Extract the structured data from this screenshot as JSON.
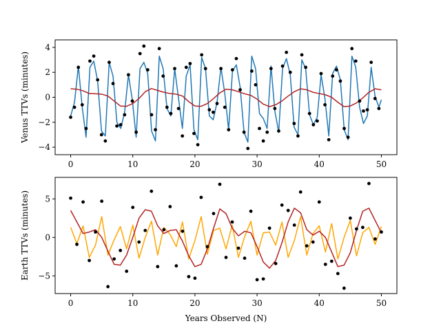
{
  "chart_data": [
    {
      "type": "line",
      "panel": "top",
      "title": "",
      "xlabel": "",
      "ylabel": "Venus TTVs (minutes)",
      "xlim": [
        -2.5,
        52.5
      ],
      "ylim": [
        -4.6,
        4.6
      ],
      "xticks": [
        0,
        10,
        20,
        30,
        40,
        50
      ],
      "yticks": [
        -4,
        -2,
        0,
        2,
        4
      ],
      "grid": false,
      "series": [
        {
          "kind": "scatter",
          "color": "#000000",
          "x": [
            0.0,
            0.62,
            1.24,
            1.86,
            2.48,
            3.1,
            3.72,
            4.34,
            4.96,
            5.58,
            6.2,
            6.82,
            7.44,
            8.06,
            8.68,
            9.3,
            9.92,
            10.54,
            11.16,
            11.78,
            12.4,
            13.02,
            13.64,
            14.26,
            14.88,
            15.5,
            16.12,
            16.74,
            17.36,
            17.98,
            18.6,
            19.22,
            19.84,
            20.46,
            21.08,
            21.7,
            22.32,
            22.94,
            23.56,
            24.18,
            24.8,
            25.42,
            26.04,
            26.66,
            27.28,
            27.9,
            28.52,
            29.14,
            29.76,
            30.38,
            31.0,
            31.62,
            32.24,
            32.86,
            33.48,
            34.1,
            34.72,
            35.34,
            35.96,
            36.58,
            37.2,
            37.82,
            38.44,
            39.06,
            39.68,
            40.3,
            40.92,
            41.54,
            42.16,
            42.78,
            43.4,
            44.02,
            44.64,
            45.26,
            45.88,
            46.5,
            47.12,
            47.74,
            48.36,
            48.98,
            49.6
          ],
          "y": [
            -1.6,
            -0.8,
            2.4,
            -0.6,
            -2.5,
            2.9,
            3.3,
            1.4,
            -3.0,
            -3.5,
            2.8,
            1.1,
            -2.3,
            -2.2,
            -1.4,
            1.8,
            -0.3,
            -2.8,
            3.5,
            4.1,
            2.2,
            -1.4,
            -2.6,
            3.9,
            1.7,
            -0.8,
            -1.3,
            2.3,
            -0.9,
            -3.1,
            2.4,
            2.7,
            -2.9,
            -3.8,
            3.4,
            2.3,
            -1.0,
            -1.2,
            -0.5,
            2.3,
            -0.8,
            -2.6,
            2.2,
            3.1,
            0.6,
            -2.8,
            -4.1,
            2.1,
            1.0,
            -2.5,
            -3.5,
            -2.8,
            2.3,
            -0.9,
            -2.7,
            2.5,
            3.6,
            2.0,
            -2.1,
            -3.1,
            3.4,
            2.4,
            -1.3,
            -2.2,
            -1.9,
            1.9,
            -0.6,
            -3.4,
            1.7,
            2.2,
            1.3,
            -2.5,
            -3.2,
            3.9,
            2.9,
            -0.3,
            -1.1,
            -1.0,
            2.8,
            -0.1,
            -0.9
          ]
        },
        {
          "kind": "line",
          "color": "#1f77b4",
          "x": [
            0.0,
            0.62,
            1.24,
            1.86,
            2.48,
            3.1,
            3.72,
            4.34,
            4.96,
            5.58,
            6.2,
            6.82,
            7.44,
            8.06,
            8.68,
            9.3,
            9.92,
            10.54,
            11.16,
            11.78,
            12.4,
            13.02,
            13.64,
            14.26,
            14.88,
            15.5,
            16.12,
            16.74,
            17.36,
            17.98,
            18.6,
            19.22,
            19.84,
            20.46,
            21.08,
            21.7,
            22.32,
            22.94,
            23.56,
            24.18,
            24.8,
            25.42,
            26.04,
            26.66,
            27.28,
            27.9,
            28.52,
            29.14,
            29.76,
            30.38,
            31.0,
            31.62,
            32.24,
            32.86,
            33.48,
            34.1,
            34.72,
            35.34,
            35.96,
            36.58,
            37.2,
            37.82,
            38.44,
            39.06,
            39.68,
            40.3,
            40.92,
            41.54,
            42.16,
            42.78,
            43.4,
            44.02,
            44.64,
            45.26,
            45.88,
            46.5,
            47.12,
            47.74,
            48.36,
            48.98,
            49.6,
            50.0
          ],
          "y": [
            -1.5,
            -0.4,
            2.5,
            -0.8,
            -3.2,
            2.4,
            2.9,
            1.3,
            -2.7,
            -3.1,
            2.8,
            1.7,
            -2.0,
            -2.5,
            -1.2,
            1.8,
            -0.2,
            -3.2,
            2.3,
            2.8,
            1.9,
            -2.7,
            -3.5,
            3.3,
            2.3,
            -0.9,
            -1.5,
            2.3,
            -0.1,
            -2.5,
            1.7,
            2.6,
            -2.6,
            -3.4,
            3.2,
            2.3,
            -1.5,
            -1.8,
            -0.4,
            2.4,
            0.3,
            -2.6,
            2.1,
            2.6,
            0.8,
            -2.8,
            -3.6,
            3.3,
            2.3,
            -1.3,
            -1.7,
            -2.5,
            2.5,
            -1.1,
            -2.8,
            2.3,
            3.1,
            1.8,
            -2.4,
            -3.0,
            3.0,
            2.3,
            -1.4,
            -2.2,
            -1.6,
            1.8,
            -0.1,
            -3.1,
            1.9,
            2.5,
            1.4,
            -2.6,
            -3.4,
            3.3,
            2.4,
            -0.8,
            -2.1,
            -1.5,
            2.4,
            0.1,
            -0.8,
            -0.2
          ]
        },
        {
          "kind": "line",
          "color": "#b22222",
          "x": [
            0,
            1,
            2,
            3,
            4,
            5,
            6,
            7,
            8,
            9,
            10,
            11,
            12,
            13,
            14,
            15,
            16,
            17,
            18,
            19,
            20,
            21,
            22,
            23,
            24,
            25,
            26,
            27,
            28,
            29,
            30,
            31,
            32,
            33,
            34,
            35,
            36,
            37,
            38,
            39,
            40,
            41,
            42,
            43,
            44,
            45,
            46,
            47,
            48,
            49,
            50
          ],
          "y": [
            0.68,
            0.65,
            0.52,
            0.3,
            0.28,
            0.25,
            0.1,
            -0.3,
            -0.7,
            -0.72,
            -0.5,
            -0.1,
            0.45,
            0.7,
            0.55,
            0.4,
            0.3,
            0.25,
            0.1,
            -0.35,
            -0.7,
            -0.72,
            -0.5,
            -0.1,
            0.35,
            0.65,
            0.6,
            0.45,
            0.28,
            0.15,
            -0.15,
            -0.55,
            -0.75,
            -0.6,
            -0.3,
            0.1,
            0.45,
            0.68,
            0.6,
            0.4,
            0.3,
            0.2,
            0.0,
            -0.4,
            -0.75,
            -0.7,
            -0.45,
            -0.05,
            0.4,
            0.68,
            0.6
          ]
        }
      ]
    },
    {
      "type": "line",
      "panel": "bottom",
      "title": "",
      "xlabel": "Years Observed (N)",
      "ylabel": "Earth TTVs (minutes)",
      "xlim": [
        -2.5,
        52.5
      ],
      "ylim": [
        -7.3,
        7.8
      ],
      "xticks": [
        0,
        10,
        20,
        30,
        40,
        50
      ],
      "yticks": [
        -5,
        0,
        5
      ],
      "grid": false,
      "series": [
        {
          "kind": "scatter",
          "color": "#000000",
          "x": [
            0,
            1,
            2,
            3,
            4,
            5,
            6,
            7,
            8,
            9,
            10,
            11,
            12,
            13,
            14,
            15,
            16,
            17,
            18,
            19,
            20,
            21,
            22,
            23,
            24,
            25,
            26,
            27,
            28,
            29,
            30,
            31,
            32,
            33,
            34,
            35,
            36,
            37,
            38,
            39,
            40,
            41,
            42,
            43,
            44,
            45,
            46,
            47,
            48,
            49,
            50
          ],
          "y": [
            5.1,
            -0.9,
            4.6,
            -3.0,
            0.7,
            4.7,
            -6.4,
            -2.8,
            -1.7,
            -4.4,
            3.9,
            -0.6,
            0.9,
            6.0,
            -3.8,
            1.0,
            4.0,
            -3.7,
            0.8,
            -5.1,
            -5.3,
            5.2,
            -1.2,
            3.1,
            6.9,
            -2.6,
            2.0,
            -1.4,
            -2.7,
            3.4,
            -5.5,
            -5.4,
            1.2,
            -3.4,
            4.2,
            3.5,
            1.6,
            5.9,
            -1.1,
            -0.6,
            4.6,
            -3.5,
            -3.1,
            -4.7,
            -6.6,
            2.5,
            1.1,
            1.3,
            7.0,
            -0.2,
            0.7
          ]
        },
        {
          "kind": "line",
          "color": "#ffa500",
          "x": [
            0,
            1,
            2,
            3,
            4,
            5,
            6,
            7,
            8,
            9,
            10,
            11,
            12,
            13,
            14,
            15,
            16,
            17,
            18,
            19,
            20,
            21,
            22,
            23,
            24,
            25,
            26,
            27,
            28,
            29,
            30,
            31,
            32,
            33,
            34,
            35,
            36,
            37,
            38,
            39,
            40,
            41,
            42,
            43,
            44,
            45,
            46,
            47,
            48,
            49,
            50
          ],
          "y": [
            1.3,
            -0.8,
            1.5,
            -2.6,
            -1.0,
            2.7,
            -2.3,
            -0.3,
            1.4,
            -1.5,
            1.6,
            -2.7,
            0.0,
            2.1,
            -2.3,
            1.3,
            0.4,
            -1.2,
            2.0,
            -2.8,
            -0.4,
            2.7,
            -2.2,
            0.9,
            1.2,
            -1.5,
            1.6,
            -2.6,
            0.1,
            2.1,
            -2.3,
            0.6,
            0.7,
            -1.0,
            2.0,
            -2.6,
            -0.4,
            2.7,
            -2.3,
            0.5,
            1.5,
            -1.9,
            1.8,
            -2.8,
            0.0,
            2.2,
            -2.4,
            0.6,
            1.3,
            -0.9,
            1.4
          ]
        },
        {
          "kind": "line",
          "color": "#b22222",
          "x": [
            0,
            1,
            2,
            3,
            4,
            5,
            6,
            7,
            8,
            9,
            10,
            11,
            12,
            13,
            14,
            15,
            16,
            17,
            18,
            19,
            20,
            21,
            22,
            23,
            24,
            25,
            26,
            27,
            28,
            29,
            30,
            31,
            32,
            33,
            34,
            35,
            36,
            37,
            38,
            39,
            40,
            41,
            42,
            43,
            44,
            45,
            46,
            47,
            48,
            49,
            50
          ],
          "y": [
            3.5,
            2.0,
            0.5,
            0.7,
            1.0,
            0.0,
            -1.8,
            -3.5,
            -3.6,
            -2.3,
            0.0,
            2.5,
            3.6,
            3.4,
            1.5,
            0.5,
            0.9,
            1.0,
            -0.5,
            -2.4,
            -3.8,
            -3.5,
            -1.5,
            1.2,
            3.7,
            3.1,
            1.2,
            0.2,
            0.8,
            0.6,
            -1.2,
            -3.2,
            -4.0,
            -3.0,
            -0.7,
            2.0,
            3.8,
            3.2,
            1.0,
            0.3,
            0.8,
            0.0,
            -1.9,
            -3.8,
            -3.6,
            -2.0,
            0.9,
            3.4,
            3.8,
            2.2,
            0.6
          ]
        }
      ]
    }
  ]
}
